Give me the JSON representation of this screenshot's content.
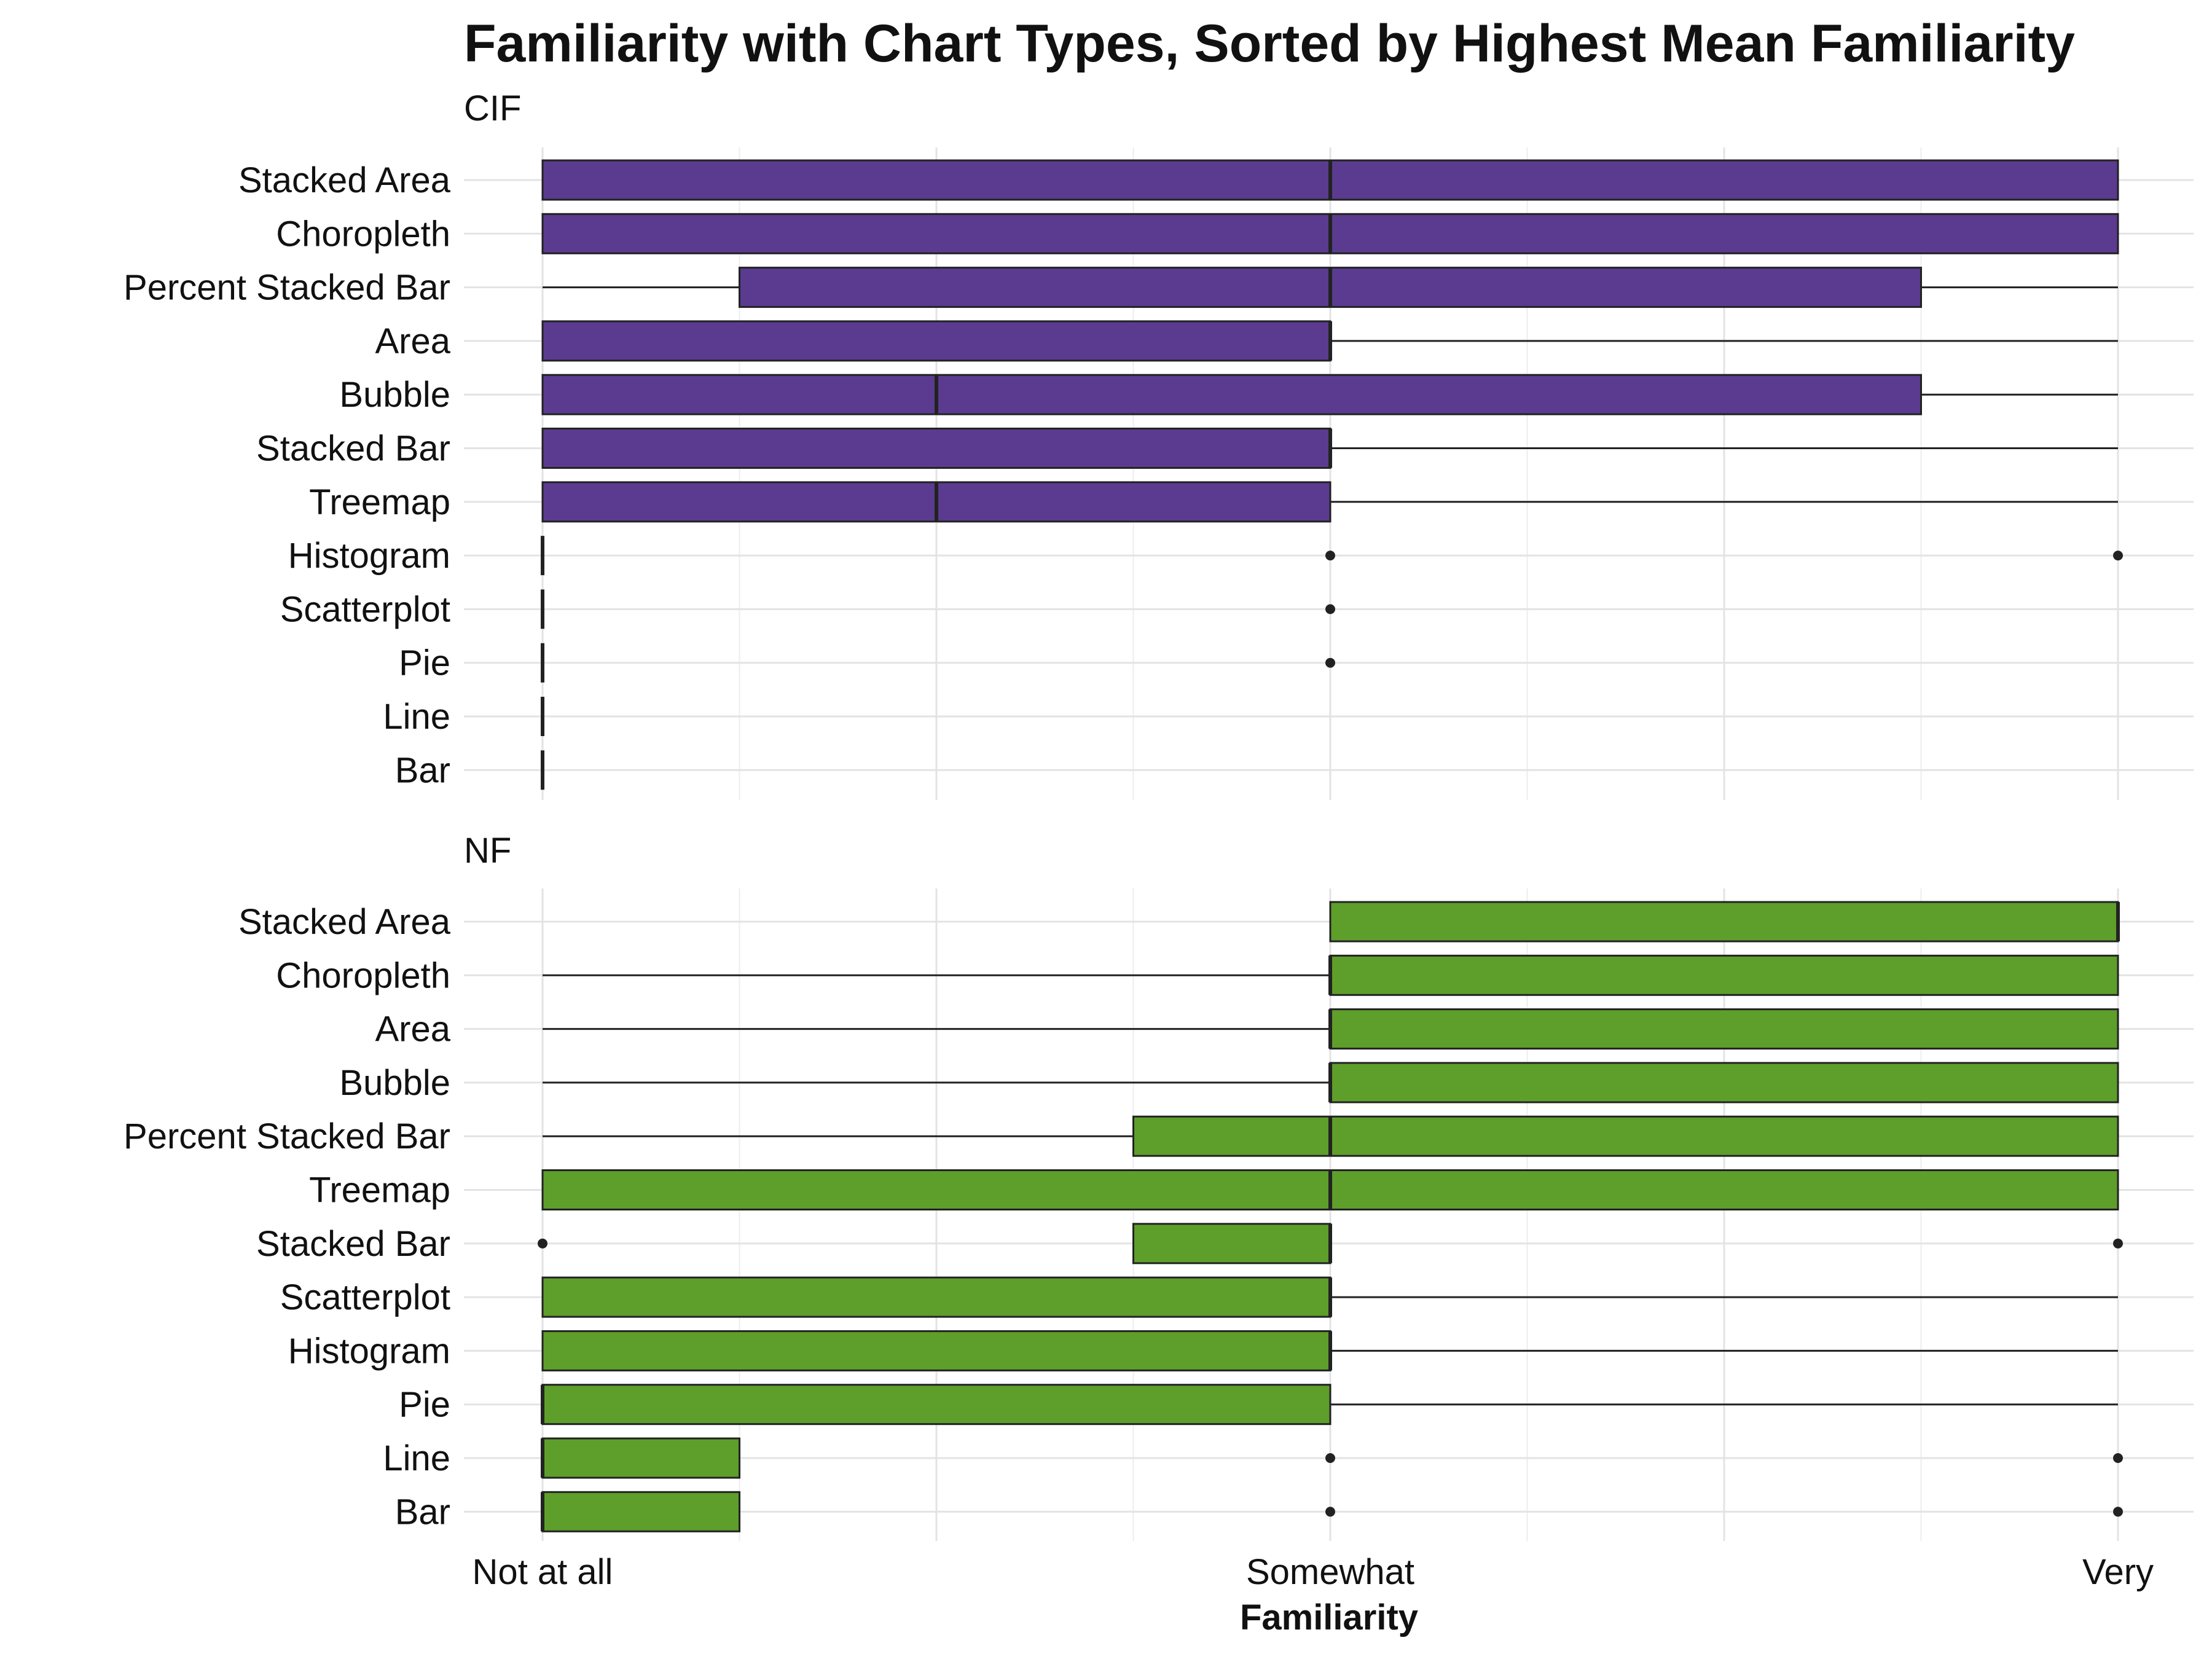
{
  "chart_data": {
    "type": "boxplot",
    "title": "Familiarity with Chart Types, Sorted by Highest Mean Familiarity",
    "xlabel": "Familiarity",
    "x_scale": {
      "min": 1,
      "max": 5
    },
    "x_ticks": [
      {
        "value": 1,
        "label": "Not at all"
      },
      {
        "value": 3,
        "label": "Somewhat"
      },
      {
        "value": 5,
        "label": "Very"
      }
    ],
    "grid": true,
    "panels": [
      {
        "name": "CIF",
        "color": "#5b3b8f",
        "boxes": [
          {
            "category": "Stacked Area",
            "whisker_low": 1,
            "q1": 1,
            "median": 3,
            "q3": 5,
            "whisker_high": 5,
            "outliers": []
          },
          {
            "category": "Choropleth",
            "whisker_low": 1,
            "q1": 1,
            "median": 3,
            "q3": 5,
            "whisker_high": 5,
            "outliers": []
          },
          {
            "category": "Percent Stacked Bar",
            "whisker_low": 1,
            "q1": 1.5,
            "median": 3,
            "q3": 4.5,
            "whisker_high": 5,
            "outliers": []
          },
          {
            "category": "Area",
            "whisker_low": 1,
            "q1": 1,
            "median": 3,
            "q3": 3,
            "whisker_high": 5,
            "outliers": []
          },
          {
            "category": "Bubble",
            "whisker_low": 1,
            "q1": 1,
            "median": 2,
            "q3": 4.5,
            "whisker_high": 5,
            "outliers": []
          },
          {
            "category": "Stacked Bar",
            "whisker_low": 1,
            "q1": 1,
            "median": 3,
            "q3": 3,
            "whisker_high": 5,
            "outliers": []
          },
          {
            "category": "Treemap",
            "whisker_low": 1,
            "q1": 1,
            "median": 2,
            "q3": 3,
            "whisker_high": 5,
            "outliers": []
          },
          {
            "category": "Histogram",
            "whisker_low": 1,
            "q1": 1,
            "median": 1,
            "q3": 1,
            "whisker_high": 1,
            "outliers": [
              3,
              5
            ]
          },
          {
            "category": "Scatterplot",
            "whisker_low": 1,
            "q1": 1,
            "median": 1,
            "q3": 1,
            "whisker_high": 1,
            "outliers": [
              3
            ]
          },
          {
            "category": "Pie",
            "whisker_low": 1,
            "q1": 1,
            "median": 1,
            "q3": 1,
            "whisker_high": 1,
            "outliers": [
              3
            ]
          },
          {
            "category": "Line",
            "whisker_low": 1,
            "q1": 1,
            "median": 1,
            "q3": 1,
            "whisker_high": 1,
            "outliers": []
          },
          {
            "category": "Bar",
            "whisker_low": 1,
            "q1": 1,
            "median": 1,
            "q3": 1,
            "whisker_high": 1,
            "outliers": []
          }
        ]
      },
      {
        "name": "NF",
        "color": "#5e9e2b",
        "boxes": [
          {
            "category": "Stacked Area",
            "whisker_low": 3,
            "q1": 3,
            "median": 5,
            "q3": 5,
            "whisker_high": 5,
            "outliers": []
          },
          {
            "category": "Choropleth",
            "whisker_low": 1,
            "q1": 3,
            "median": 3,
            "q3": 5,
            "whisker_high": 5,
            "outliers": []
          },
          {
            "category": "Area",
            "whisker_low": 1,
            "q1": 3,
            "median": 3,
            "q3": 5,
            "whisker_high": 5,
            "outliers": []
          },
          {
            "category": "Bubble",
            "whisker_low": 1,
            "q1": 3,
            "median": 3,
            "q3": 5,
            "whisker_high": 5,
            "outliers": []
          },
          {
            "category": "Percent Stacked Bar",
            "whisker_low": 1,
            "q1": 2.5,
            "median": 3,
            "q3": 5,
            "whisker_high": 5,
            "outliers": []
          },
          {
            "category": "Treemap",
            "whisker_low": 1,
            "q1": 1,
            "median": 3,
            "q3": 5,
            "whisker_high": 5,
            "outliers": []
          },
          {
            "category": "Stacked Bar",
            "whisker_low": 2.5,
            "q1": 2.5,
            "median": 3,
            "q3": 3,
            "whisker_high": 3,
            "outliers": [
              1,
              5
            ]
          },
          {
            "category": "Scatterplot",
            "whisker_low": 1,
            "q1": 1,
            "median": 3,
            "q3": 3,
            "whisker_high": 5,
            "outliers": []
          },
          {
            "category": "Histogram",
            "whisker_low": 1,
            "q1": 1,
            "median": 3,
            "q3": 3,
            "whisker_high": 5,
            "outliers": []
          },
          {
            "category": "Pie",
            "whisker_low": 1,
            "q1": 1,
            "median": 1,
            "q3": 3,
            "whisker_high": 5,
            "outliers": []
          },
          {
            "category": "Line",
            "whisker_low": 1,
            "q1": 1,
            "median": 1,
            "q3": 1.5,
            "whisker_high": 1.5,
            "outliers": [
              3,
              5
            ]
          },
          {
            "category": "Bar",
            "whisker_low": 1,
            "q1": 1,
            "median": 1,
            "q3": 1.5,
            "whisker_high": 1.5,
            "outliers": [
              3,
              5
            ]
          }
        ]
      }
    ]
  }
}
